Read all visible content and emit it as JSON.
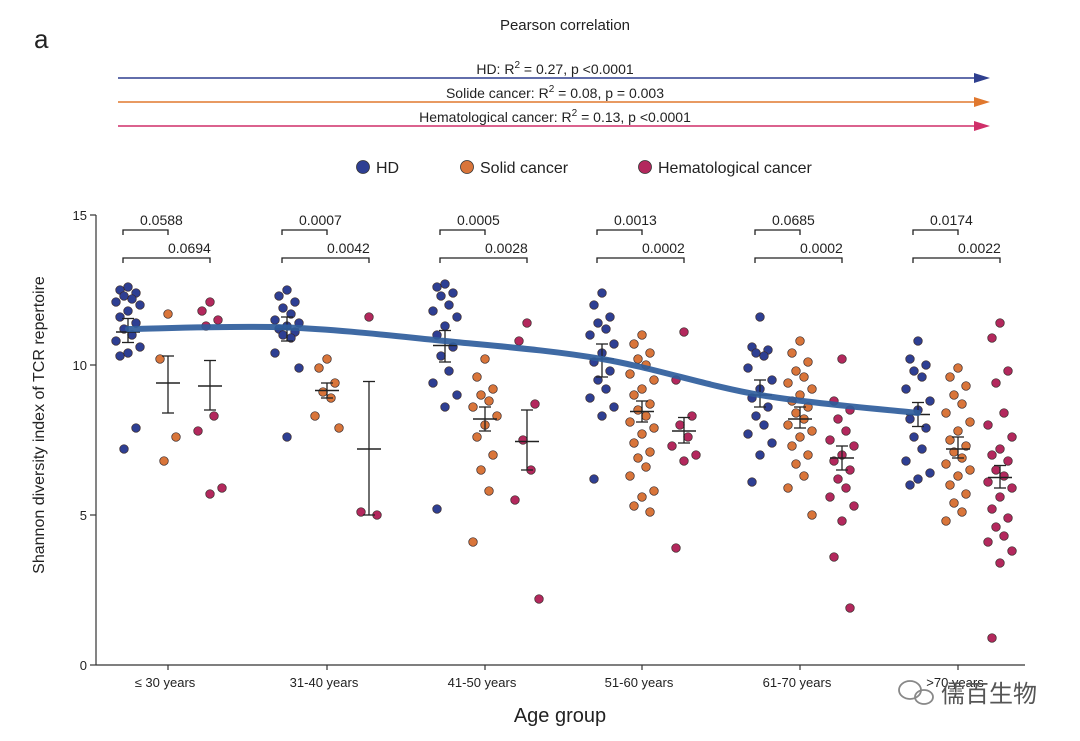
{
  "panel_label": "a",
  "header": {
    "title": "Pearson correlation",
    "correlations": [
      {
        "prefix": "HD: R",
        "sup": "2",
        "suffix": " = 0.27,  p <0.0001",
        "color": "#2f3f8f"
      },
      {
        "prefix": "Solide cancer: R",
        "sup": "2",
        "suffix": " = 0.08,  p = 0.003",
        "color": "#e0782e"
      },
      {
        "prefix": "Hematological cancer: R",
        "sup": "2",
        "suffix": " = 0.13, p <0.0001",
        "color": "#cf2f69"
      }
    ]
  },
  "watermark": "儒百生物",
  "chart_data": {
    "type": "scatter",
    "xlabel": "Age group",
    "ylabel": "Shannon diversity index of TCR repertoire",
    "ylim": [
      0,
      15
    ],
    "yticks": [
      0,
      5,
      10,
      15
    ],
    "categories": [
      "≤ 30 years",
      "31-40 years",
      "41-50 years",
      "51-60 years",
      "61-70 years",
      ">70 years"
    ],
    "legend": {
      "position": "top-center"
    },
    "series": [
      {
        "name": "HD",
        "color": "#2e3f93",
        "mean": [
          11.1,
          11.2,
          10.65,
          10.2,
          9.0,
          8.35
        ],
        "ci_low": [
          10.75,
          10.8,
          10.1,
          9.6,
          8.6,
          7.95
        ],
        "ci_high": [
          11.55,
          11.6,
          11.15,
          10.7,
          9.5,
          8.75
        ],
        "points": [
          [
            12.6,
            12.5,
            12.4,
            12.3,
            12.2,
            12.1,
            12.0,
            11.8,
            11.6,
            11.4,
            11.2,
            11.0,
            10.8,
            10.6,
            10.4,
            10.3,
            7.9,
            7.2
          ],
          [
            12.5,
            12.3,
            12.1,
            11.9,
            11.7,
            11.5,
            11.4,
            11.3,
            11.2,
            11.1,
            11.0,
            10.9,
            10.4,
            9.9,
            7.6
          ],
          [
            12.7,
            12.6,
            12.4,
            12.3,
            12.0,
            11.8,
            11.6,
            11.3,
            11.0,
            10.6,
            10.3,
            9.8,
            9.4,
            9.0,
            8.6,
            5.2
          ],
          [
            12.4,
            12.0,
            11.6,
            11.4,
            11.2,
            11.0,
            10.7,
            10.4,
            10.1,
            9.8,
            9.5,
            9.2,
            8.9,
            8.6,
            8.3,
            6.2
          ],
          [
            11.6,
            10.6,
            10.5,
            10.4,
            10.3,
            9.9,
            9.5,
            9.2,
            8.9,
            8.6,
            8.3,
            8.0,
            7.7,
            7.4,
            7.0,
            6.1
          ],
          [
            10.8,
            10.2,
            10.0,
            9.8,
            9.6,
            9.2,
            8.8,
            8.5,
            8.2,
            7.9,
            7.6,
            7.2,
            6.8,
            6.4,
            6.2,
            6.0
          ]
        ]
      },
      {
        "name": "Solid cancer",
        "color": "#d9753a",
        "mean": [
          9.4,
          9.15,
          8.2,
          8.45,
          8.2,
          7.2
        ],
        "ci_low": [
          8.4,
          8.9,
          7.8,
          8.1,
          7.9,
          6.9
        ],
        "ci_high": [
          10.3,
          9.4,
          8.6,
          8.8,
          8.6,
          7.6
        ],
        "points": [
          [
            11.7,
            10.2,
            7.6,
            6.8
          ],
          [
            10.2,
            9.9,
            9.4,
            9.1,
            8.9,
            8.3,
            7.9
          ],
          [
            10.2,
            9.6,
            9.2,
            9.0,
            8.8,
            8.6,
            8.3,
            8.0,
            7.6,
            7.0,
            6.5,
            5.8,
            4.1
          ],
          [
            11.0,
            10.7,
            10.4,
            10.2,
            10.0,
            9.7,
            9.5,
            9.2,
            9.0,
            8.7,
            8.5,
            8.3,
            8.1,
            7.9,
            7.7,
            7.4,
            7.1,
            6.9,
            6.6,
            6.3,
            5.8,
            5.6,
            5.3,
            5.1
          ],
          [
            10.8,
            10.4,
            10.1,
            9.8,
            9.6,
            9.4,
            9.2,
            9.0,
            8.8,
            8.6,
            8.4,
            8.2,
            8.0,
            7.8,
            7.6,
            7.3,
            7.0,
            6.7,
            6.3,
            5.9,
            5.0
          ],
          [
            9.9,
            9.6,
            9.3,
            9.0,
            8.7,
            8.4,
            8.1,
            7.8,
            7.5,
            7.3,
            7.1,
            6.9,
            6.7,
            6.5,
            6.3,
            6.0,
            5.7,
            5.4,
            5.1,
            4.8
          ]
        ]
      },
      {
        "name": "Hematological cancer",
        "color": "#b3285d",
        "mean": [
          9.3,
          7.2,
          7.45,
          7.8,
          6.9,
          6.25
        ],
        "ci_low": [
          8.5,
          5.0,
          6.5,
          7.4,
          6.5,
          5.9
        ],
        "ci_high": [
          10.15,
          9.45,
          8.5,
          8.25,
          7.3,
          6.65
        ],
        "points": [
          [
            12.1,
            11.8,
            11.5,
            11.3,
            8.3,
            7.8,
            5.9,
            5.7
          ],
          [
            11.6,
            5.1,
            5.0
          ],
          [
            11.4,
            10.8,
            8.7,
            7.5,
            6.5,
            5.5,
            2.2
          ],
          [
            11.1,
            9.5,
            8.3,
            8.0,
            7.6,
            7.3,
            7.0,
            6.8,
            3.9
          ],
          [
            10.2,
            8.8,
            8.5,
            8.2,
            7.8,
            7.5,
            7.3,
            7.0,
            6.8,
            6.5,
            6.2,
            5.9,
            5.6,
            5.3,
            4.8,
            3.6,
            1.9
          ],
          [
            11.4,
            10.9,
            9.8,
            9.4,
            8.4,
            8.0,
            7.6,
            7.2,
            7.0,
            6.8,
            6.5,
            6.3,
            6.1,
            5.9,
            5.6,
            5.2,
            4.9,
            4.6,
            4.3,
            4.1,
            3.8,
            3.4,
            0.9
          ]
        ]
      }
    ],
    "trend": {
      "name": "HD trend",
      "color": "#2f5d9c",
      "values": [
        11.2,
        11.25,
        10.8,
        10.2,
        9.0,
        8.4
      ]
    },
    "comparisons": [
      {
        "group": 0,
        "pair": "HD-Solid",
        "p": "0.0588"
      },
      {
        "group": 0,
        "pair": "HD-Hematological",
        "p": "0.0694"
      },
      {
        "group": 1,
        "pair": "HD-Solid",
        "p": "0.0007"
      },
      {
        "group": 1,
        "pair": "HD-Hematological",
        "p": "0.0042"
      },
      {
        "group": 2,
        "pair": "HD-Solid",
        "p": "0.0005"
      },
      {
        "group": 2,
        "pair": "HD-Hematological",
        "p": "0.0028"
      },
      {
        "group": 3,
        "pair": "HD-Solid",
        "p": "0.0013"
      },
      {
        "group": 3,
        "pair": "HD-Hematological",
        "p": "0.0002"
      },
      {
        "group": 4,
        "pair": "HD-Solid",
        "p": "0.0685"
      },
      {
        "group": 4,
        "pair": "HD-Hematological",
        "p": "0.0002"
      },
      {
        "group": 5,
        "pair": "HD-Solid",
        "p": "0.0174"
      },
      {
        "group": 5,
        "pair": "HD-Hematological",
        "p": "0.0022"
      }
    ]
  }
}
